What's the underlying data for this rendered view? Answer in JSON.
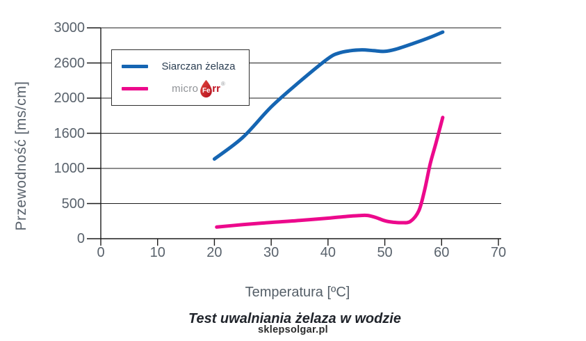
{
  "title": "Test uwalniania żelaza w wodzie",
  "watermark": "sklepsolgar.pl",
  "legend": {
    "items": [
      {
        "label": "Siarczan żelaza",
        "color": "#1565b2"
      },
      {
        "label": "microFerr",
        "color": "#ec098c",
        "logo": {
          "prefix": "micro",
          "drop_text": "Fe",
          "suffix": "rr",
          "reg": "®"
        }
      }
    ]
  },
  "logo_colors": {
    "gray": "#8f9296",
    "red_text": "#c01423",
    "drop_top": "#e2463c",
    "drop_bottom": "#b30f1e"
  },
  "axis_colors": {
    "grid": "#1b1b1b",
    "spine": "#1b1b1b",
    "tick_text": "#59626c"
  },
  "chart_data": {
    "type": "line",
    "title": "Test uwalniania żelaza w wodzie",
    "xlabel": "Temperatura [ºC]",
    "ylabel": "Przewodność [ms/cm]",
    "x_ticks": [
      0,
      10,
      20,
      30,
      40,
      50,
      60,
      70
    ],
    "xlim": [
      0,
      70
    ],
    "y_ticks": [
      0,
      500,
      1000,
      1600,
      2000,
      2600,
      3000
    ],
    "y_axis_note": "gridlines evenly spaced although tick values are non-uniform",
    "grid": true,
    "legend_position": "upper-left-inside",
    "series": [
      {
        "name": "Siarczan żelaza",
        "color": "#1565b2",
        "points": [
          [
            20,
            1160
          ],
          [
            25,
            1530
          ],
          [
            30,
            1900
          ],
          [
            35,
            2280
          ],
          [
            40,
            2650
          ],
          [
            42,
            2715
          ],
          [
            44,
            2740
          ],
          [
            46,
            2750
          ],
          [
            48,
            2740
          ],
          [
            50,
            2732
          ],
          [
            52,
            2758
          ],
          [
            55,
            2822
          ],
          [
            58,
            2892
          ],
          [
            60.2,
            2952
          ]
        ]
      },
      {
        "name": "microFerr",
        "color": "#ec098c",
        "points": [
          [
            20.4,
            165
          ],
          [
            25,
            200
          ],
          [
            30,
            232
          ],
          [
            35,
            260
          ],
          [
            40,
            292
          ],
          [
            43,
            315
          ],
          [
            45.5,
            330
          ],
          [
            47,
            331
          ],
          [
            48.5,
            300
          ],
          [
            50,
            255
          ],
          [
            51.5,
            234
          ],
          [
            53,
            228
          ],
          [
            54.5,
            246
          ],
          [
            56,
            400
          ],
          [
            57,
            690
          ],
          [
            58,
            1080
          ],
          [
            59,
            1430
          ],
          [
            60.2,
            1780
          ]
        ]
      }
    ]
  }
}
